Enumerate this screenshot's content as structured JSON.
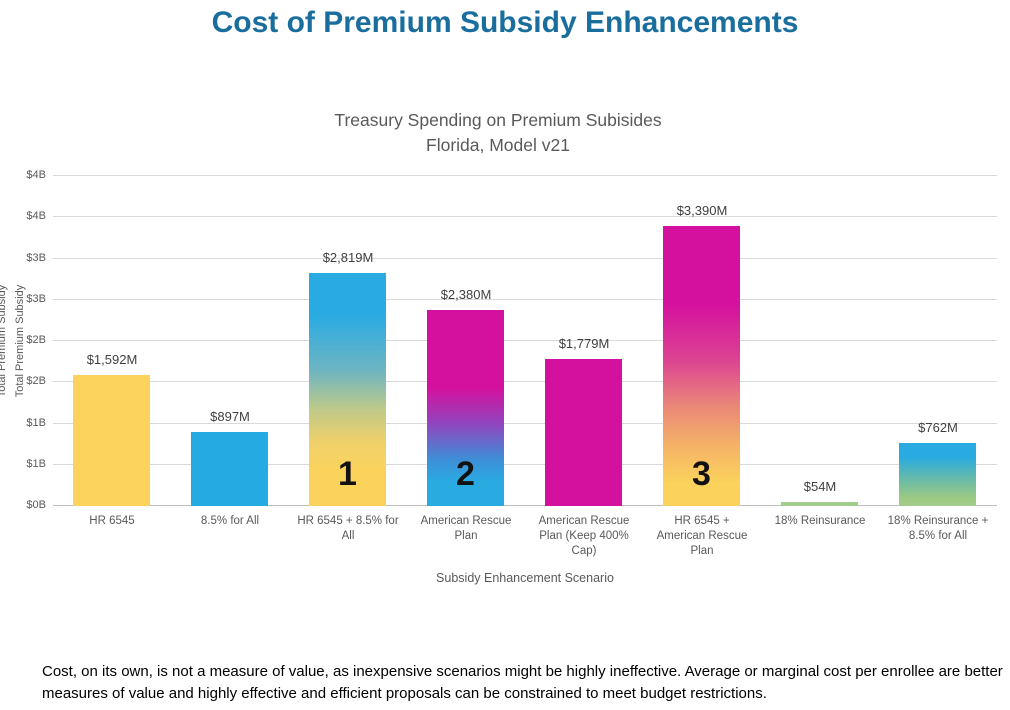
{
  "page_title": "Cost of Premium Subsidy Enhancements",
  "footnote": "Cost, on its own, is not a measure of value, as inexpensive scenarios might be highly ineffective.  Average or marginal cost per enrollee are better measures of value and highly effective and efficient proposals can be constrained to meet budget restrictions.",
  "colors": {
    "title_blue": "#1A6E9E",
    "axis_text_gray": "#595959",
    "gridline_gray": "#D9D9D9",
    "axis_line_gray": "#BFBFBF",
    "bar_yellow": "#FCD35C",
    "bar_blue": "#25AAE1",
    "bar_magenta": "#D4119E",
    "bar_green": "#A2CC8B"
  },
  "chart_data": {
    "type": "bar",
    "title_lines": [
      "Treasury Spending on Premium Subisides",
      "Florida, Model v21"
    ],
    "xlabel": "Subsidy Enhancement Scenario",
    "ylabel": "Total Premium Subsidy",
    "ylim_billions": [
      0,
      4
    ],
    "ytick_interval_billions": 0.5,
    "ytick_labels": [
      "$0B",
      "$1B",
      "$1B",
      "$2B",
      "$2B",
      "$3B",
      "$3B",
      "$4B",
      "$4B"
    ],
    "grid": true,
    "legend": false,
    "categories": [
      "HR 6545",
      "8.5% for All",
      "HR 6545 + 8.5% for All",
      "American Rescue Plan",
      "American Rescue Plan (Keep 400% Cap)",
      "HR 6545 + American Rescue Plan",
      "18% Reinsurance",
      "18% Reinsurance + 8.5% for All"
    ],
    "values_millions": [
      1592,
      897,
      2819,
      2380,
      1779,
      3390,
      54,
      762
    ],
    "value_labels": [
      "$1,592M",
      "$897M",
      "$2,819M",
      "$2,380M",
      "$1,779M",
      "$3,390M",
      "$54M",
      "$762M"
    ],
    "rank_labels": [
      "",
      "",
      "1",
      "2",
      "",
      "3",
      "",
      ""
    ],
    "bar_fills": [
      [
        "#FCD35C 0%",
        "#FCD35C 100%"
      ],
      [
        "#25AAE1 0%",
        "#25AAE1 100%"
      ],
      [
        "#29ABE2 0%",
        "#29ABE2 18%",
        "#6FB5C2 42%",
        "#BCC98B 58%",
        "#EED06B 72%",
        "#FBD35C 85%",
        "#FBD35C 100%"
      ],
      [
        "#D4119E 0%",
        "#D4119E 40%",
        "#9145BE 58%",
        "#3E8ED6 76%",
        "#29ABE2 88%",
        "#29ABE2 100%"
      ],
      [
        "#D4119E 0%",
        "#D4119E 100%"
      ],
      [
        "#D4119E 0%",
        "#D4119E 28%",
        "#DC4492 48%",
        "#EA8679 64%",
        "#F4B167 78%",
        "#FBD35C 92%",
        "#FBD35C 100%"
      ],
      [
        "#A2CC8B 0%",
        "#A2CC8B 100%"
      ],
      [
        "#29ABE2 0%",
        "#29ABE2 22%",
        "#64B9AC 55%",
        "#9DC982 88%",
        "#A2CC8B 100%"
      ]
    ]
  }
}
